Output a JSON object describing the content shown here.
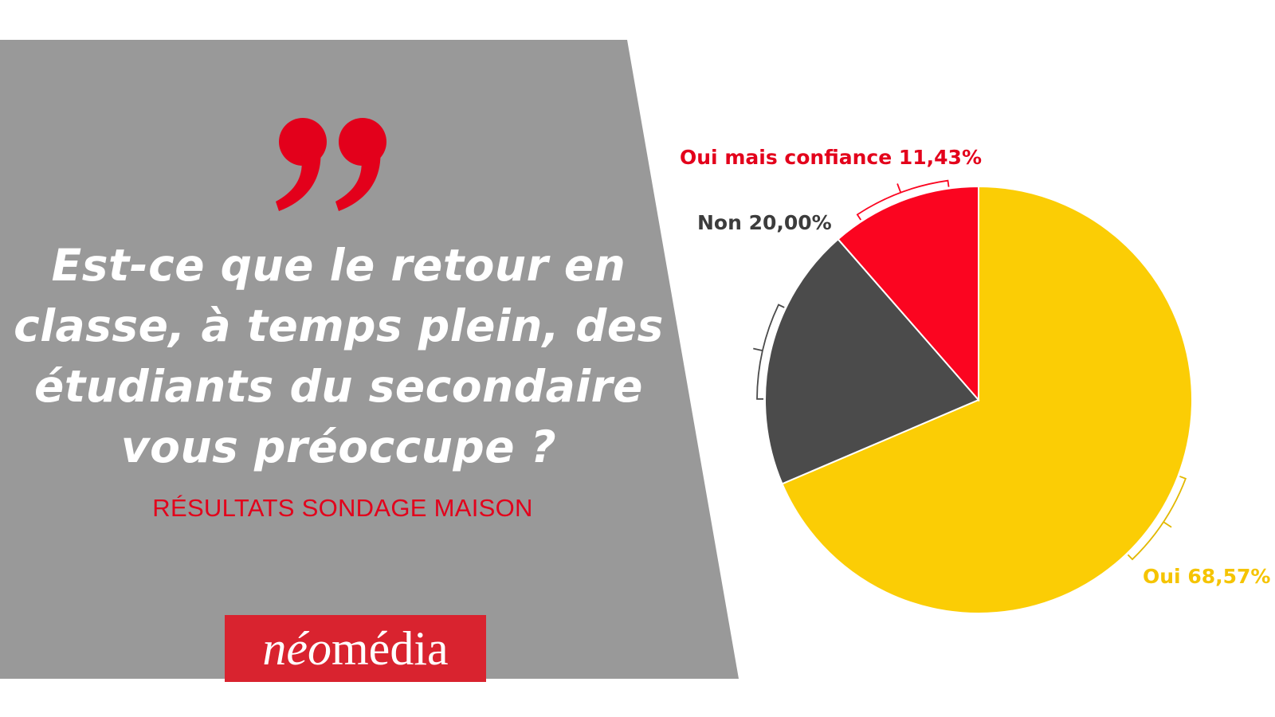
{
  "headline": {
    "question": "Est-ce que le retour en classe, à temps plein, des étudiants du secondaire vous préoccupe ?",
    "subtitle": "RÉSULTATS SONDAGE MAISON"
  },
  "logo": {
    "part1": "néo",
    "part2": "média"
  },
  "colors": {
    "panel": "#999999",
    "accent": "#e3001b",
    "oui": "#fbcd05",
    "non": "#4b4b4b",
    "oui_mais": "#fb0520"
  },
  "chart_data": {
    "type": "pie",
    "slices": [
      {
        "label": "Oui 68,57%",
        "value": 68.57,
        "color": "#fbcd05"
      },
      {
        "label": "Non 20,00%",
        "value": 20.0,
        "color": "#4b4b4b"
      },
      {
        "label": "Oui mais confiance 11,43%",
        "value": 11.43,
        "color": "#fb0520"
      }
    ]
  }
}
